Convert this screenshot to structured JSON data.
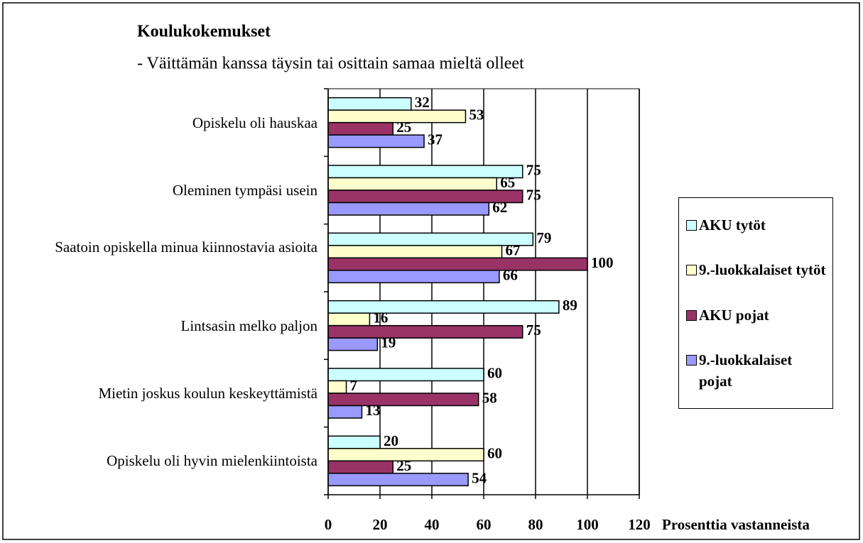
{
  "chart_data": {
    "type": "bar",
    "orientation": "horizontal",
    "title": "Koulukokemukset",
    "subtitle": "- Väittämän kanssa täysin tai osittain samaa mieltä olleet",
    "x_label": "Prosenttia vastanneista",
    "categories": [
      "Opiskelu oli hauskaa",
      "Oleminen tympäsi usein",
      "Saatoin opiskella minua kiinnostavia asioita",
      "Lintsasin melko paljon",
      "Mietin joskus koulun keskeyttämistä",
      "Opiskelu oli hyvin mielenkiintoista"
    ],
    "series": [
      {
        "name": "AKU tytöt",
        "color": "#ccffff",
        "values": [
          32,
          75,
          79,
          89,
          60,
          20
        ]
      },
      {
        "name": "9.-luokkalaiset tytöt",
        "color": "#ffffcc",
        "values": [
          53,
          65,
          67,
          16,
          7,
          60
        ]
      },
      {
        "name": "AKU pojat",
        "color": "#993366",
        "values": [
          25,
          75,
          100,
          75,
          58,
          25
        ]
      },
      {
        "name": "9.-luokkalaiset pojat",
        "color": "#9999ff",
        "values": [
          37,
          62,
          66,
          19,
          13,
          54
        ]
      }
    ],
    "xlim": [
      0,
      120
    ],
    "xticks": [
      0,
      20,
      40,
      60,
      80,
      100,
      120
    ],
    "grid": true,
    "legend": "right"
  }
}
